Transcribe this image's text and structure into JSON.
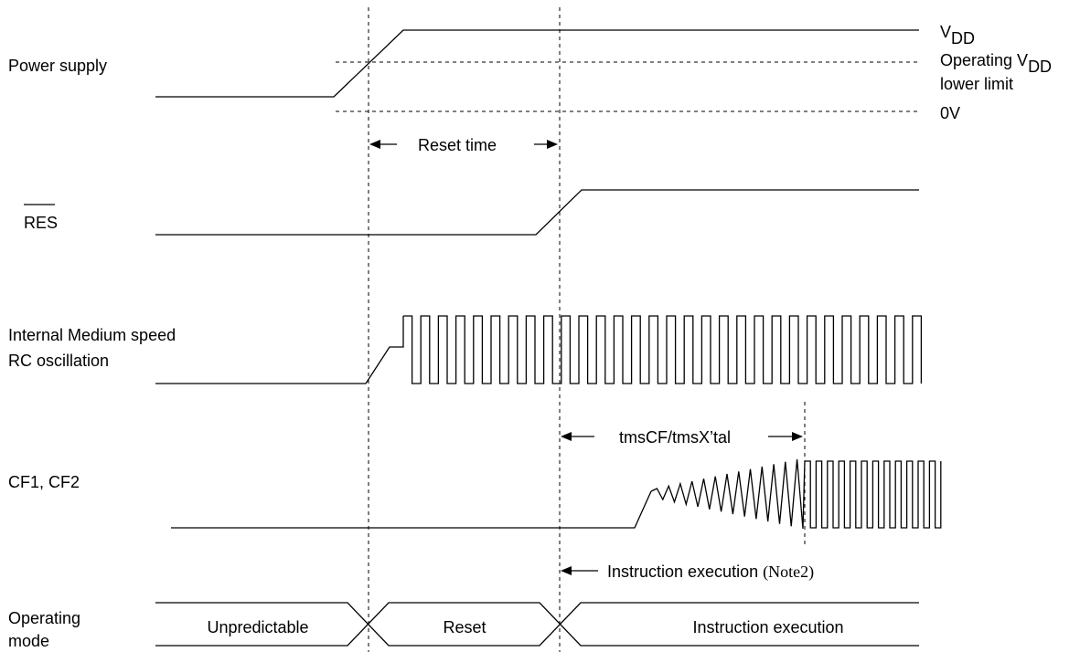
{
  "signals": {
    "power_supply": "Power supply",
    "res": "RES",
    "rc_line1": "Internal Medium speed",
    "rc_line2": "RC oscillation",
    "cf": "CF1, CF2",
    "mode_line1": "Operating",
    "mode_line2": "mode"
  },
  "levels": {
    "vdd_main": "V",
    "vdd_sub": "DD",
    "op_line1_main": "Operating V",
    "op_line1_sub": "DD",
    "op_line2": "lower limit",
    "zero": "0V"
  },
  "timings": {
    "reset_time": "Reset time",
    "tms": "tmsCF/tmsX’tal",
    "instr_exec_text": "Instruction execution ",
    "instr_exec_note": "(Note2)"
  },
  "modes": {
    "unpredictable": "Unpredictable",
    "reset": "Reset",
    "instruction": "Instruction execution"
  }
}
